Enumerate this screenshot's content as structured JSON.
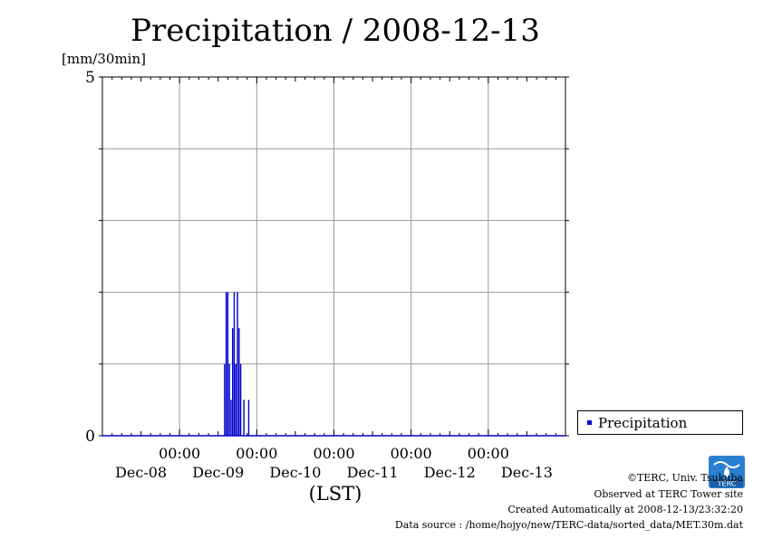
{
  "chart_data": {
    "type": "bar",
    "title": "Precipitation / 2008-12-13",
    "ylabel": "[mm/30min]",
    "xlabel": "(LST)",
    "ylim": [
      0,
      5
    ],
    "y_ticks": [
      "5",
      "0"
    ],
    "x_tick_times": [
      "00:00",
      "00:00",
      "00:00",
      "00:00",
      "00:00"
    ],
    "x_tick_dates": [
      "Dec-08",
      "Dec-09",
      "Dec-10",
      "Dec-11",
      "Dec-12",
      "Dec-13"
    ],
    "x_range_hours": [
      0,
      144
    ],
    "grid": true,
    "legend_position": "bottom-right",
    "series": [
      {
        "name": "Precipitation",
        "color": "#0000cc",
        "points": [
          {
            "t": 38.0,
            "v": 1.0
          },
          {
            "t": 38.5,
            "v": 2.0
          },
          {
            "t": 39.0,
            "v": 2.0
          },
          {
            "t": 39.5,
            "v": 1.0
          },
          {
            "t": 40.0,
            "v": 0.5
          },
          {
            "t": 40.5,
            "v": 1.5
          },
          {
            "t": 41.0,
            "v": 2.0
          },
          {
            "t": 41.5,
            "v": 1.0
          },
          {
            "t": 42.0,
            "v": 2.0
          },
          {
            "t": 42.5,
            "v": 1.5
          },
          {
            "t": 43.0,
            "v": 1.0
          },
          {
            "t": 44.0,
            "v": 0.5
          },
          {
            "t": 45.5,
            "v": 0.5
          }
        ]
      }
    ]
  },
  "credits": {
    "copyright": "©TERC, Univ. Tsukuba",
    "observed": "Observed at TERC Tower site",
    "created": "Created Automatically at 2008-12-13/23:32:20",
    "source": "Data source : /home/hojyo/new/TERC-data/sorted_data/MET.30m.dat",
    "logo_text": "TERC"
  }
}
